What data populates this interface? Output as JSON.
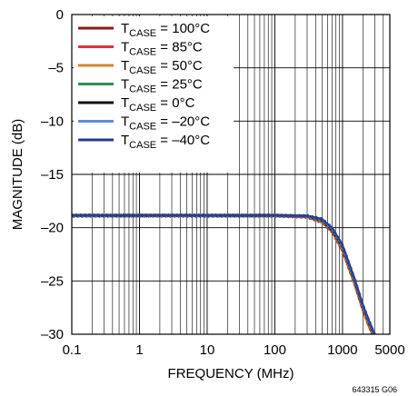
{
  "chart_data": {
    "type": "line",
    "xlabel": "FREQUENCY (MHz)",
    "ylabel": "MAGNITUDE (dB)",
    "x_scale": "log",
    "xlim": [
      0.1,
      5000
    ],
    "ylim": [
      -30,
      0
    ],
    "grid": true,
    "legend_position": "top-left",
    "x_ticks": [
      {
        "value": 0.1,
        "label": "0.1"
      },
      {
        "value": 1,
        "label": "1"
      },
      {
        "value": 10,
        "label": "10"
      },
      {
        "value": 100,
        "label": "100"
      },
      {
        "value": 1000,
        "label": "1000"
      },
      {
        "value": 5000,
        "label": "5000"
      }
    ],
    "y_ticks": [
      {
        "value": 0,
        "label": "0"
      },
      {
        "value": -5,
        "label": "–5"
      },
      {
        "value": -10,
        "label": "–10"
      },
      {
        "value": -15,
        "label": "–15"
      },
      {
        "value": -20,
        "label": "–20"
      },
      {
        "value": -25,
        "label": "–25"
      },
      {
        "value": -30,
        "label": "–30"
      }
    ],
    "x": [
      0.1,
      1,
      10,
      100,
      300,
      500,
      700,
      1000,
      1500,
      2000,
      2500,
      3000,
      3500
    ],
    "series": [
      {
        "name_main": "T",
        "name_sub": "CASE",
        "name_rest": " = 100°C",
        "color": "#8b1a1a",
        "values": [
          -18.9,
          -18.9,
          -18.9,
          -18.9,
          -19.0,
          -19.5,
          -20.4,
          -22.2,
          -25.3,
          -27.8,
          -29.4,
          -30.6,
          -31.5
        ]
      },
      {
        "name_main": "T",
        "name_sub": "CASE",
        "name_rest": " = 85°C",
        "color": "#e03040",
        "values": [
          -18.85,
          -18.85,
          -18.85,
          -18.85,
          -18.95,
          -19.45,
          -20.35,
          -22.1,
          -25.2,
          -27.7,
          -29.3,
          -30.5,
          -31.4
        ]
      },
      {
        "name_main": "T",
        "name_sub": "CASE",
        "name_rest": " = 50°C",
        "color": "#d4862a",
        "values": [
          -18.85,
          -18.85,
          -18.85,
          -18.85,
          -18.95,
          -19.4,
          -20.3,
          -22.0,
          -25.1,
          -27.6,
          -29.2,
          -30.4,
          -31.3
        ]
      },
      {
        "name_main": "T",
        "name_sub": "CASE",
        "name_rest": " = 25°C",
        "color": "#2f8f4f",
        "values": [
          -18.85,
          -18.85,
          -18.85,
          -18.85,
          -18.95,
          -19.35,
          -20.25,
          -21.9,
          -25.0,
          -27.5,
          -29.1,
          -30.3,
          -31.2
        ]
      },
      {
        "name_main": "T",
        "name_sub": "CASE",
        "name_rest": " = 0°C",
        "color": "#111111",
        "values": [
          -18.85,
          -18.85,
          -18.85,
          -18.85,
          -18.9,
          -19.3,
          -20.2,
          -21.8,
          -24.9,
          -27.4,
          -29.0,
          -30.2,
          -31.1
        ]
      },
      {
        "name_main": "T",
        "name_sub": "CASE",
        "name_rest": " = –20°C",
        "color": "#5b8fd6",
        "values": [
          -18.85,
          -18.85,
          -18.85,
          -18.85,
          -18.9,
          -19.25,
          -20.1,
          -21.7,
          -24.8,
          -27.3,
          -28.9,
          -30.1,
          -31.0
        ]
      },
      {
        "name_main": "T",
        "name_sub": "CASE",
        "name_rest": " = –40°C",
        "color": "#2b3d8f",
        "values": [
          -18.85,
          -18.85,
          -18.85,
          -18.85,
          -18.9,
          -19.2,
          -20.0,
          -21.6,
          -24.7,
          -27.2,
          -28.8,
          -30.0,
          -30.9
        ]
      }
    ],
    "figure_id": "643315 G06"
  }
}
